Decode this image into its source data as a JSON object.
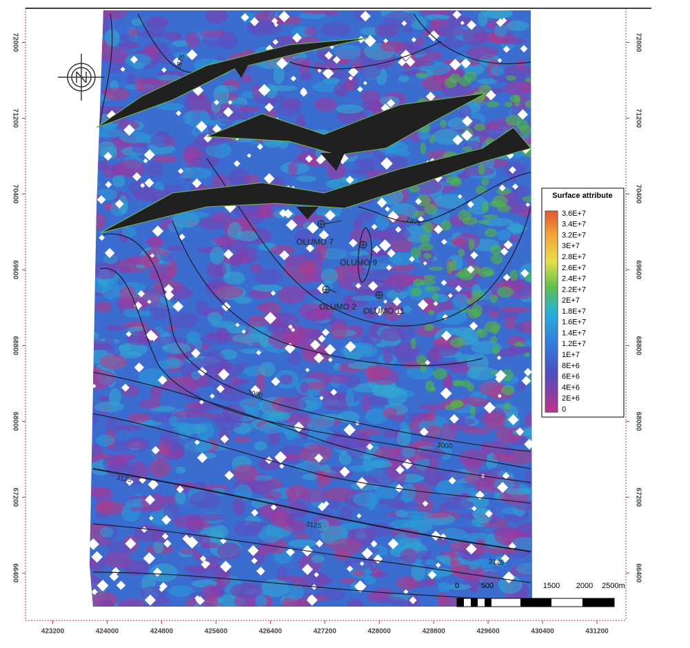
{
  "map": {
    "xlim": [
      422800,
      432000
    ],
    "ylim": [
      65900,
      72360
    ],
    "xticks": [
      423200,
      424000,
      424800,
      425600,
      426400,
      427200,
      428000,
      428800,
      429600,
      430400,
      431200
    ],
    "yticks": [
      66400,
      67200,
      68000,
      68800,
      69600,
      70400,
      71200,
      72000
    ],
    "legend": {
      "title": "Surface attribute",
      "labels": [
        "3.6E+7",
        "3.4E+7",
        "3.2E+7",
        "3E+7",
        "2.8E+7",
        "2.6E+7",
        "2.4E+7",
        "2.2E+7",
        "2E+7",
        "1.8E+7",
        "1.6E+7",
        "1.4E+7",
        "1.2E+7",
        "1E+7",
        "8E+6",
        "6E+6",
        "4E+6",
        "2E+6",
        "0"
      ]
    },
    "wells": [
      "OLUMO 7",
      "OLUMO 9",
      "OLUMO 2",
      "OLUMO 11"
    ],
    "contour_labels": [
      "2875",
      "2875",
      "3000",
      "3000",
      "3125",
      "3125",
      "3125"
    ],
    "scale_bar": [
      "0",
      "500",
      "1500",
      "2000",
      "2500m"
    ]
  }
}
